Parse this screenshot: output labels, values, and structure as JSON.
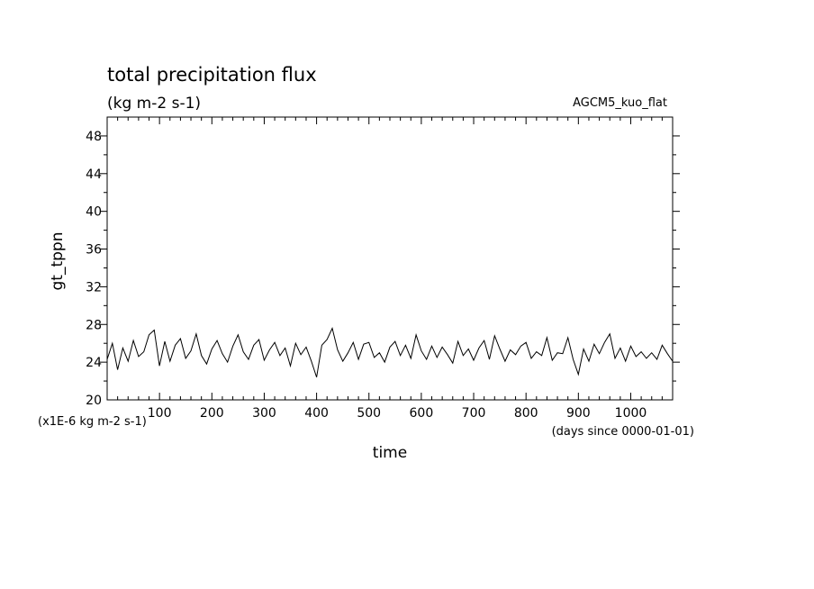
{
  "chart_data": {
    "type": "line",
    "title": "total precipitation flux",
    "subtitle": "(kg m-2 s-1)",
    "annotation": "AGCM5_kuo_flat",
    "xlabel": "time",
    "xunit": "(days since 0000-01-01)",
    "ylabel": "gt_tppn",
    "yunit": "(x1E-6 kg m-2 s-1)",
    "xlim": [
      0,
      1080
    ],
    "ylim": [
      20,
      50
    ],
    "xticks": [
      100,
      200,
      300,
      400,
      500,
      600,
      700,
      800,
      900,
      1000
    ],
    "xtick_labels": [
      "100",
      "200",
      "300",
      "400",
      "500",
      "600",
      "700",
      "800",
      "900",
      "1000"
    ],
    "yticks": [
      20,
      24,
      28,
      32,
      36,
      40,
      44,
      48
    ],
    "ytick_labels": [
      "20",
      "24",
      "28",
      "32",
      "36",
      "40",
      "44",
      "48"
    ],
    "grid": false,
    "series": [
      {
        "color": "#000000",
        "x": [
          0,
          10,
          20,
          30,
          40,
          50,
          60,
          70,
          80,
          90,
          100,
          110,
          120,
          130,
          140,
          150,
          160,
          170,
          180,
          190,
          200,
          210,
          220,
          230,
          240,
          250,
          260,
          270,
          280,
          290,
          300,
          310,
          320,
          330,
          340,
          350,
          360,
          370,
          380,
          390,
          400,
          410,
          420,
          430,
          440,
          450,
          460,
          470,
          480,
          490,
          500,
          510,
          520,
          530,
          540,
          550,
          560,
          570,
          580,
          590,
          600,
          610,
          620,
          630,
          640,
          650,
          660,
          670,
          680,
          690,
          700,
          710,
          720,
          730,
          740,
          750,
          760,
          770,
          780,
          790,
          800,
          810,
          820,
          830,
          840,
          850,
          860,
          870,
          880,
          890,
          900,
          910,
          920,
          930,
          940,
          950,
          960,
          970,
          980,
          990,
          1000,
          1010,
          1020,
          1030,
          1040,
          1050,
          1060,
          1070,
          1080
        ],
        "values": [
          24.3,
          26.0,
          23.2,
          25.5,
          24.1,
          26.3,
          24.6,
          25.1,
          26.9,
          27.4,
          23.6,
          26.2,
          24.1,
          25.8,
          26.5,
          24.4,
          25.2,
          27.0,
          24.7,
          23.8,
          25.4,
          26.3,
          24.9,
          24.0,
          25.7,
          26.9,
          25.1,
          24.3,
          25.8,
          26.4,
          24.2,
          25.3,
          26.1,
          24.7,
          25.5,
          23.6,
          26.0,
          24.8,
          25.6,
          24.1,
          22.4,
          25.8,
          26.4,
          27.6,
          25.3,
          24.1,
          25.0,
          26.1,
          24.3,
          25.9,
          26.1,
          24.5,
          25.0,
          24.0,
          25.6,
          26.2,
          24.7,
          25.8,
          24.4,
          26.9,
          25.2,
          24.3,
          25.7,
          24.5,
          25.6,
          24.8,
          23.9,
          26.2,
          24.7,
          25.4,
          24.2,
          25.5,
          26.3,
          24.3,
          26.8,
          25.4,
          24.1,
          25.3,
          24.8,
          25.7,
          26.1,
          24.4,
          25.1,
          24.7,
          26.6,
          24.2,
          25.0,
          24.9,
          26.6,
          24.3,
          22.7,
          25.4,
          24.1,
          25.9,
          24.9,
          26.1,
          27.0,
          24.4,
          25.5,
          24.1,
          25.7,
          24.6,
          25.1,
          24.4,
          25.0,
          24.3,
          25.8,
          24.9,
          24.1
        ]
      }
    ]
  }
}
